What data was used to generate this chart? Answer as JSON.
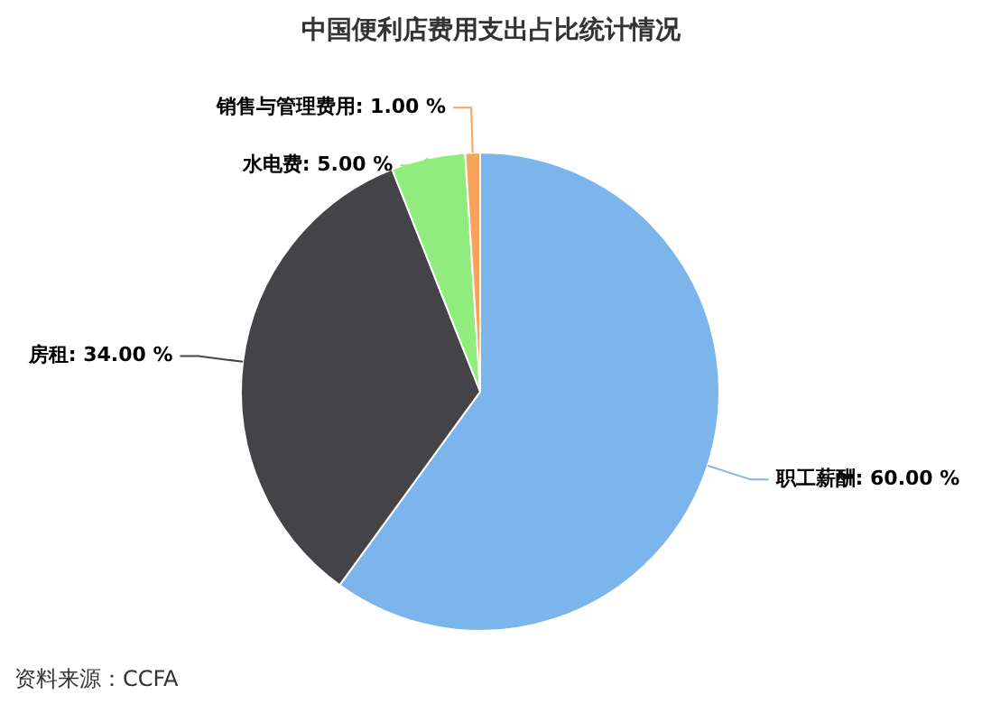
{
  "chart_data": {
    "type": "pie",
    "title": "中国便利店费用支出占比统计情况",
    "categories": [
      "职工薪酬",
      "房租",
      "水电费",
      "销售与管理费用"
    ],
    "values": [
      60,
      34,
      5,
      1
    ],
    "value_labels": [
      "60.00 %",
      "34.00 %",
      "5.00 %",
      "1.00 %"
    ],
    "colors": [
      "#7cb5ec",
      "#434348",
      "#90ed7d",
      "#f7a35c"
    ],
    "legend": false,
    "annotations": [
      "资料来源：CCFA"
    ]
  }
}
